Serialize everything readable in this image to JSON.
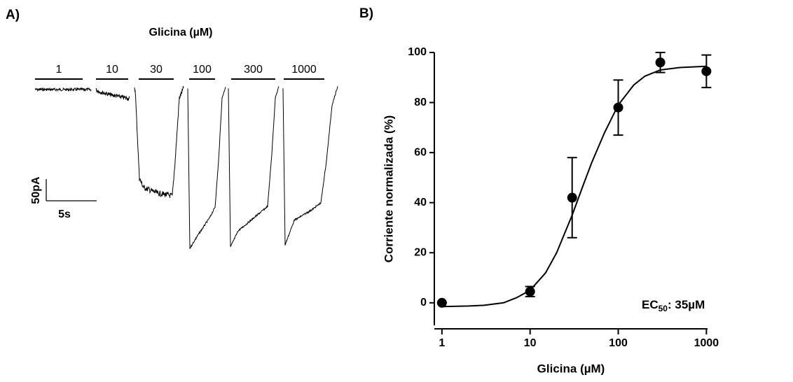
{
  "panel_a": {
    "label": "A)",
    "title": "Glicina (µM)",
    "concentrations": [
      "1",
      "10",
      "30",
      "100",
      "300",
      "1000"
    ],
    "scale_y": "50pA",
    "scale_x": "5s"
  },
  "chart_data": {
    "type": "scatter",
    "panel_label": "B)",
    "xlabel": "Glicina (µM)",
    "ylabel": "Corriente normalizada (%)",
    "x": [
      1,
      10,
      30,
      100,
      300,
      1000
    ],
    "values": [
      0,
      4.5,
      42,
      78,
      96,
      92.5
    ],
    "errors": [
      0,
      2,
      16,
      11,
      4,
      6.5
    ],
    "fit": {
      "x": [
        1,
        2,
        3,
        5,
        7,
        10,
        15,
        20,
        30,
        40,
        50,
        70,
        100,
        150,
        200,
        300,
        500,
        1000
      ],
      "values": [
        -1.5,
        -1.3,
        -1,
        0,
        2,
        5,
        12,
        20,
        35,
        47,
        56,
        68,
        79,
        87,
        90.5,
        93,
        94,
        94.5
      ]
    },
    "annotation_parts": [
      "EC",
      "50",
      ": 35µM"
    ],
    "xscale": "log",
    "xlim": [
      0.82,
      1030
    ],
    "xticks": [
      1,
      10,
      100,
      1000
    ],
    "ylim": [
      -9,
      100
    ],
    "yticks": [
      0,
      20,
      40,
      60,
      80,
      100
    ],
    "color": "#000000"
  }
}
